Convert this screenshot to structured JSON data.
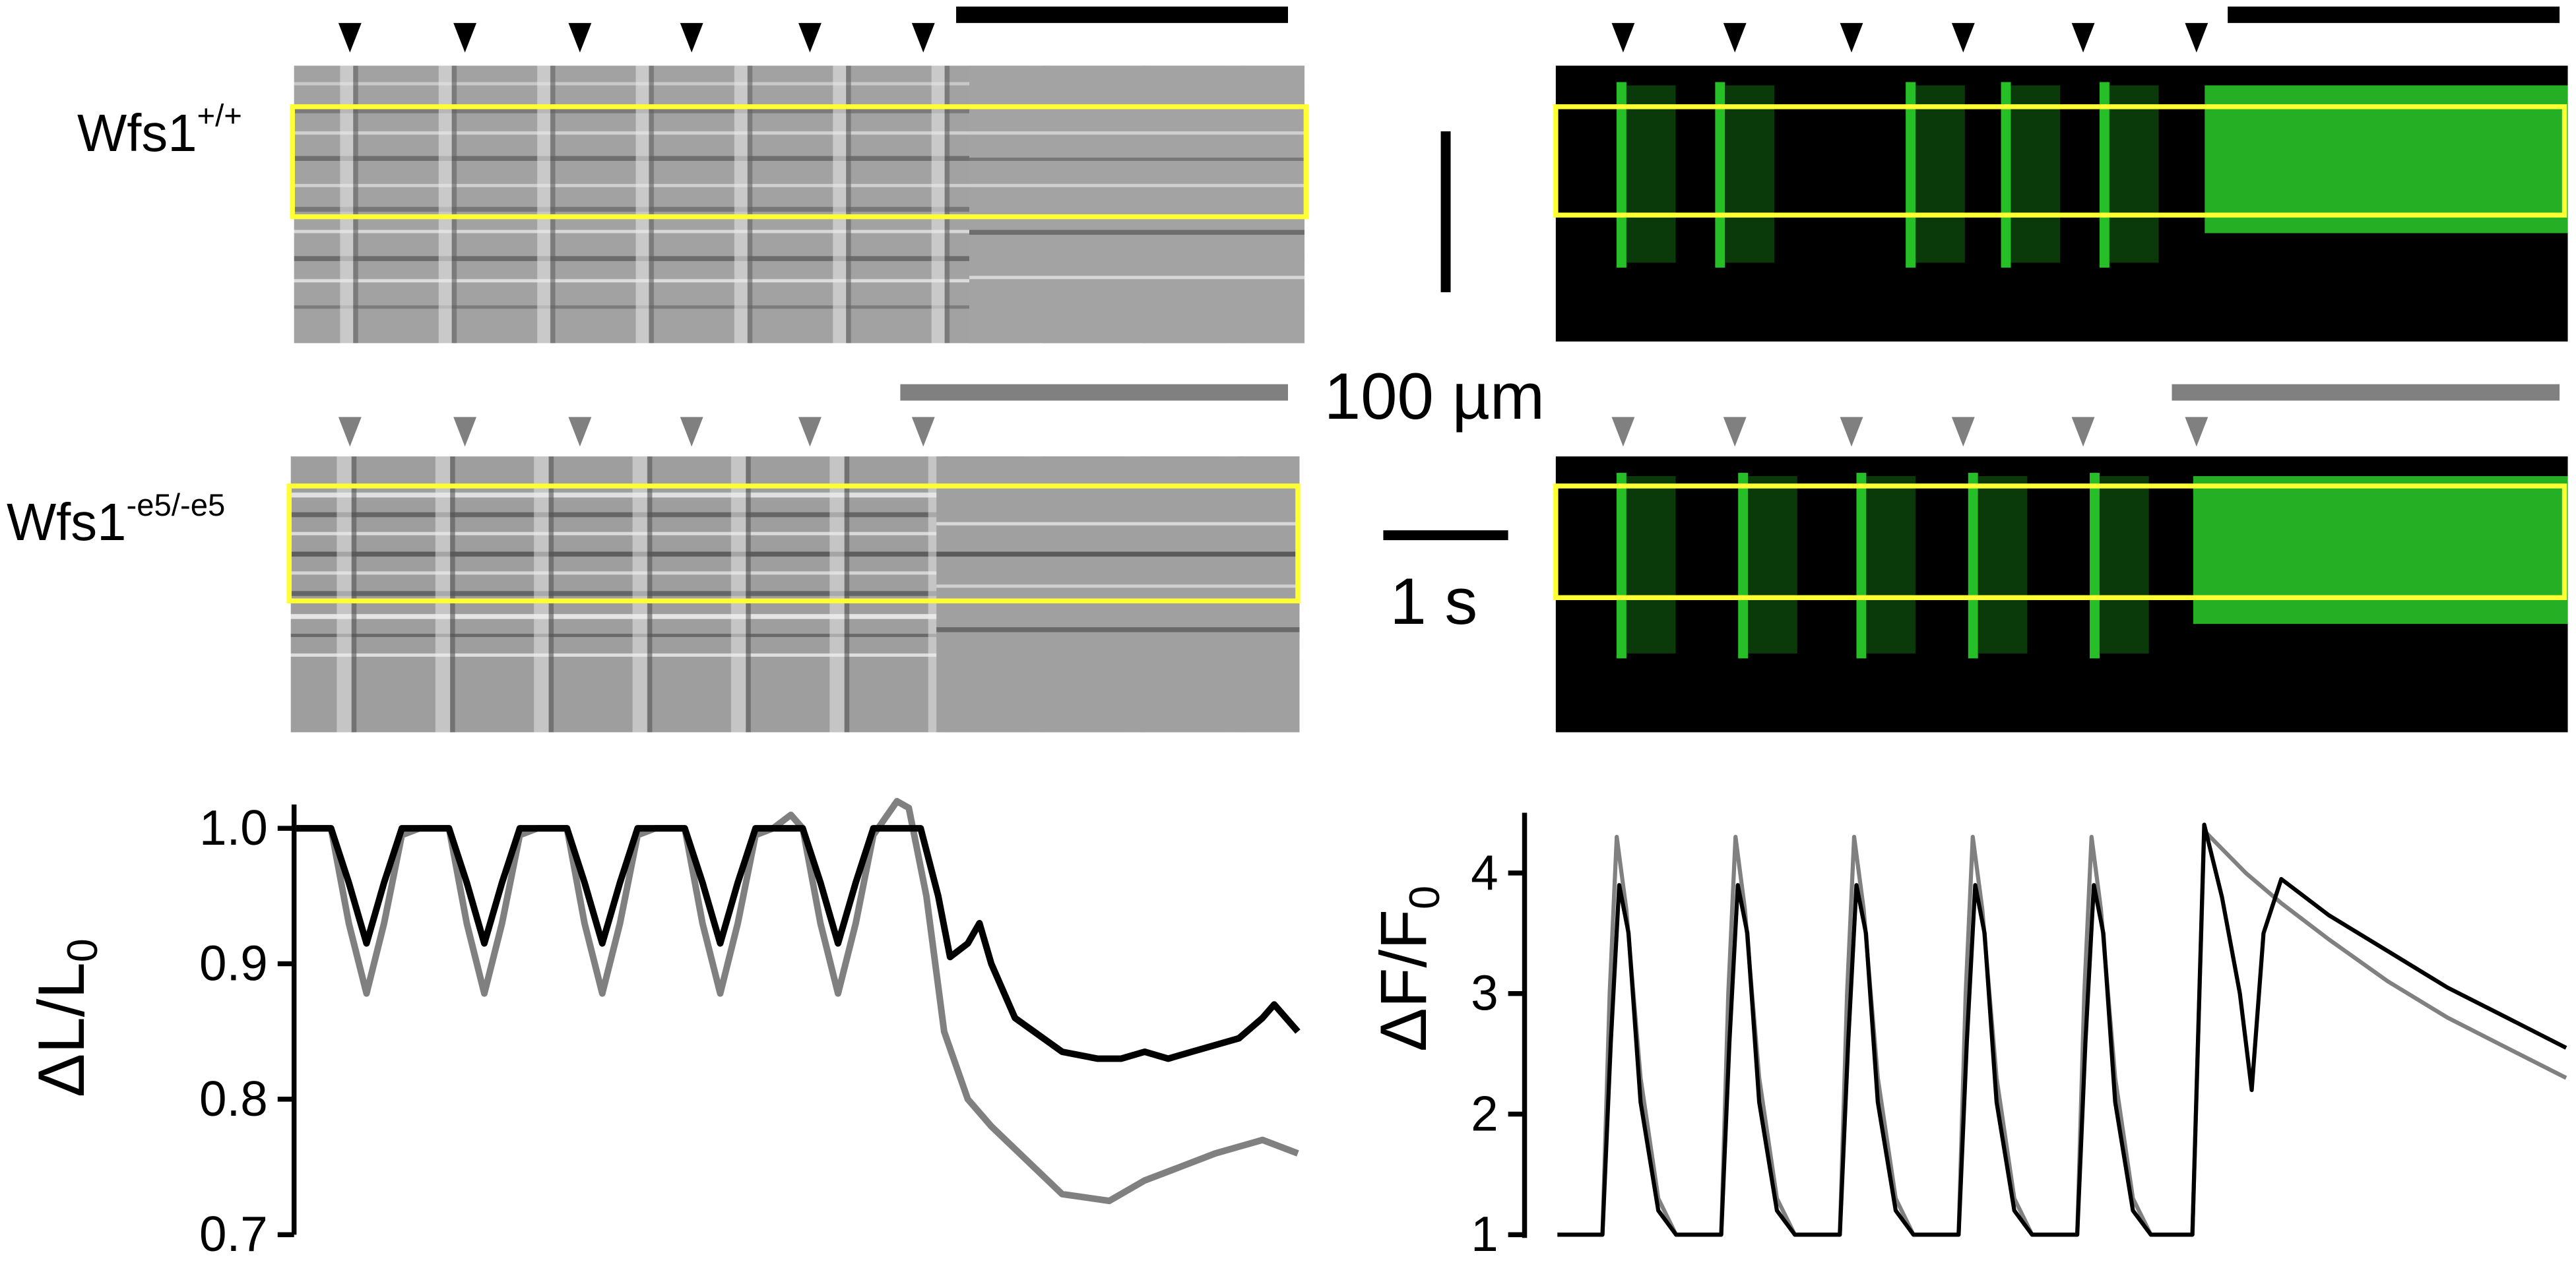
{
  "genotypes": {
    "wt": {
      "base": "Wfs1",
      "sup": "+/+"
    },
    "mut": {
      "base": "Wfs1",
      "sup": "-e5/-e5"
    }
  },
  "scale_bars": {
    "length": "100 µm",
    "time": "1 s"
  },
  "colors": {
    "wt_trace": "#000000",
    "mut_trace": "#808080",
    "roi_box": "#ffff33",
    "fluor": "#2ee02e",
    "brightfield": "#9a9a9a"
  },
  "stimulus_markers": {
    "per_panel": 6,
    "wt_color": "#000000",
    "mut_color": "#808080"
  },
  "chart_data": [
    {
      "type": "line",
      "title": "",
      "xlabel": "",
      "ylabel": "ΔL/L0",
      "ylabel_main": "ΔL/L",
      "ylabel_sub": "0",
      "ylim": [
        0.7,
        1.02
      ],
      "yticks": [
        "0.7",
        "0.8",
        "0.9",
        "1.0"
      ],
      "x_unit": "s",
      "xlim": [
        0,
        8.5
      ],
      "grid": false,
      "stimuli_s": [
        0.4,
        1.4,
        2.4,
        3.4,
        4.4,
        5.4
      ],
      "series": [
        {
          "name": "Wfs1+/+",
          "color": "#000000",
          "x": [
            0,
            0.3,
            0.45,
            0.6,
            0.75,
            0.9,
            1.3,
            1.45,
            1.6,
            1.75,
            1.9,
            2.3,
            2.45,
            2.6,
            2.75,
            2.9,
            3.3,
            3.45,
            3.6,
            3.75,
            3.9,
            4.3,
            4.45,
            4.6,
            4.75,
            4.9,
            5.3,
            5.45,
            5.55,
            5.7,
            5.8,
            5.9,
            6.1,
            6.5,
            6.8,
            7.0,
            7.2,
            7.4,
            7.6,
            7.8,
            8.0,
            8.2,
            8.3,
            8.5
          ],
          "y": [
            1.0,
            1.0,
            0.96,
            0.915,
            0.96,
            1.0,
            1.0,
            0.96,
            0.915,
            0.96,
            1.0,
            1.0,
            0.96,
            0.915,
            0.96,
            1.0,
            1.0,
            0.96,
            0.915,
            0.96,
            1.0,
            1.0,
            0.96,
            0.915,
            0.96,
            1.0,
            1.0,
            0.95,
            0.905,
            0.915,
            0.93,
            0.9,
            0.86,
            0.835,
            0.83,
            0.83,
            0.835,
            0.83,
            0.835,
            0.84,
            0.845,
            0.86,
            0.87,
            0.85
          ]
        },
        {
          "name": "Wfs1-e5/-e5",
          "color": "#808080",
          "x": [
            0,
            0.3,
            0.45,
            0.6,
            0.75,
            0.9,
            1.05,
            1.3,
            1.45,
            1.6,
            1.75,
            1.9,
            2.05,
            2.3,
            2.45,
            2.6,
            2.75,
            2.9,
            3.05,
            3.3,
            3.45,
            3.6,
            3.75,
            3.9,
            4.05,
            4.2,
            4.3,
            4.45,
            4.6,
            4.75,
            4.9,
            5.1,
            5.2,
            5.35,
            5.5,
            5.7,
            5.9,
            6.2,
            6.5,
            6.9,
            7.2,
            7.5,
            7.8,
            8.0,
            8.2,
            8.5
          ],
          "y": [
            1.0,
            1.0,
            0.93,
            0.878,
            0.93,
            0.995,
            1.0,
            1.0,
            0.93,
            0.878,
            0.93,
            0.995,
            1.0,
            1.0,
            0.93,
            0.878,
            0.93,
            0.995,
            1.0,
            1.0,
            0.93,
            0.878,
            0.93,
            0.995,
            1.0,
            1.01,
            1.0,
            0.93,
            0.878,
            0.93,
            0.995,
            1.02,
            1.015,
            0.95,
            0.85,
            0.8,
            0.78,
            0.755,
            0.73,
            0.725,
            0.74,
            0.75,
            0.76,
            0.765,
            0.77,
            0.76
          ]
        }
      ]
    },
    {
      "type": "line",
      "title": "",
      "xlabel": "",
      "ylabel": "ΔF/F0",
      "ylabel_main": "ΔF/F",
      "ylabel_sub": "0",
      "ylim": [
        1,
        4.5
      ],
      "yticks": [
        "1",
        "2",
        "3",
        "4"
      ],
      "x_unit": "s",
      "xlim": [
        0,
        8.5
      ],
      "grid": false,
      "stimuli_s": [
        0.4,
        1.4,
        2.4,
        3.4,
        4.4,
        5.4
      ],
      "series": [
        {
          "name": "Wfs1+/+",
          "color": "#000000",
          "x": [
            0,
            0.38,
            0.45,
            0.52,
            0.6,
            0.7,
            0.85,
            1.0,
            1.38,
            1.45,
            1.52,
            1.6,
            1.7,
            1.85,
            2.0,
            2.38,
            2.45,
            2.52,
            2.6,
            2.7,
            2.85,
            3.0,
            3.38,
            3.45,
            3.52,
            3.6,
            3.7,
            3.85,
            4.0,
            4.38,
            4.45,
            4.52,
            4.6,
            4.7,
            4.85,
            5.0,
            5.35,
            5.45,
            5.6,
            5.75,
            5.85,
            5.95,
            6.1,
            6.5,
            7.0,
            7.5,
            8.0,
            8.5
          ],
          "y": [
            1.0,
            1.0,
            2.6,
            3.9,
            3.5,
            2.1,
            1.2,
            1.0,
            1.0,
            2.6,
            3.9,
            3.5,
            2.1,
            1.2,
            1.0,
            1.0,
            2.6,
            3.9,
            3.5,
            2.1,
            1.2,
            1.0,
            1.0,
            2.6,
            3.9,
            3.5,
            2.1,
            1.2,
            1.0,
            1.0,
            2.6,
            3.9,
            3.5,
            2.1,
            1.2,
            1.0,
            1.0,
            4.4,
            3.8,
            3.0,
            2.2,
            3.5,
            3.95,
            3.65,
            3.35,
            3.05,
            2.8,
            2.55
          ]
        },
        {
          "name": "Wfs1-e5/-e5",
          "color": "#808080",
          "x": [
            0,
            0.38,
            0.44,
            0.5,
            0.58,
            0.7,
            0.85,
            1.0,
            1.38,
            1.44,
            1.5,
            1.58,
            1.7,
            1.85,
            2.0,
            2.38,
            2.44,
            2.5,
            2.58,
            2.7,
            2.85,
            3.0,
            3.38,
            3.44,
            3.5,
            3.58,
            3.7,
            3.85,
            4.0,
            4.38,
            4.44,
            4.5,
            4.58,
            4.7,
            4.85,
            5.0,
            5.35,
            5.45,
            5.6,
            5.8,
            6.1,
            6.5,
            7.0,
            7.5,
            8.0,
            8.5
          ],
          "y": [
            1.0,
            1.0,
            3.0,
            4.3,
            3.7,
            2.3,
            1.3,
            1.0,
            1.0,
            3.0,
            4.3,
            3.7,
            2.3,
            1.3,
            1.0,
            1.0,
            3.0,
            4.3,
            3.7,
            2.3,
            1.3,
            1.0,
            1.0,
            3.0,
            4.3,
            3.7,
            2.3,
            1.3,
            1.0,
            1.0,
            3.0,
            4.3,
            3.7,
            2.3,
            1.3,
            1.0,
            1.0,
            4.35,
            4.2,
            4.0,
            3.75,
            3.45,
            3.1,
            2.8,
            2.55,
            2.3
          ]
        }
      ]
    }
  ]
}
